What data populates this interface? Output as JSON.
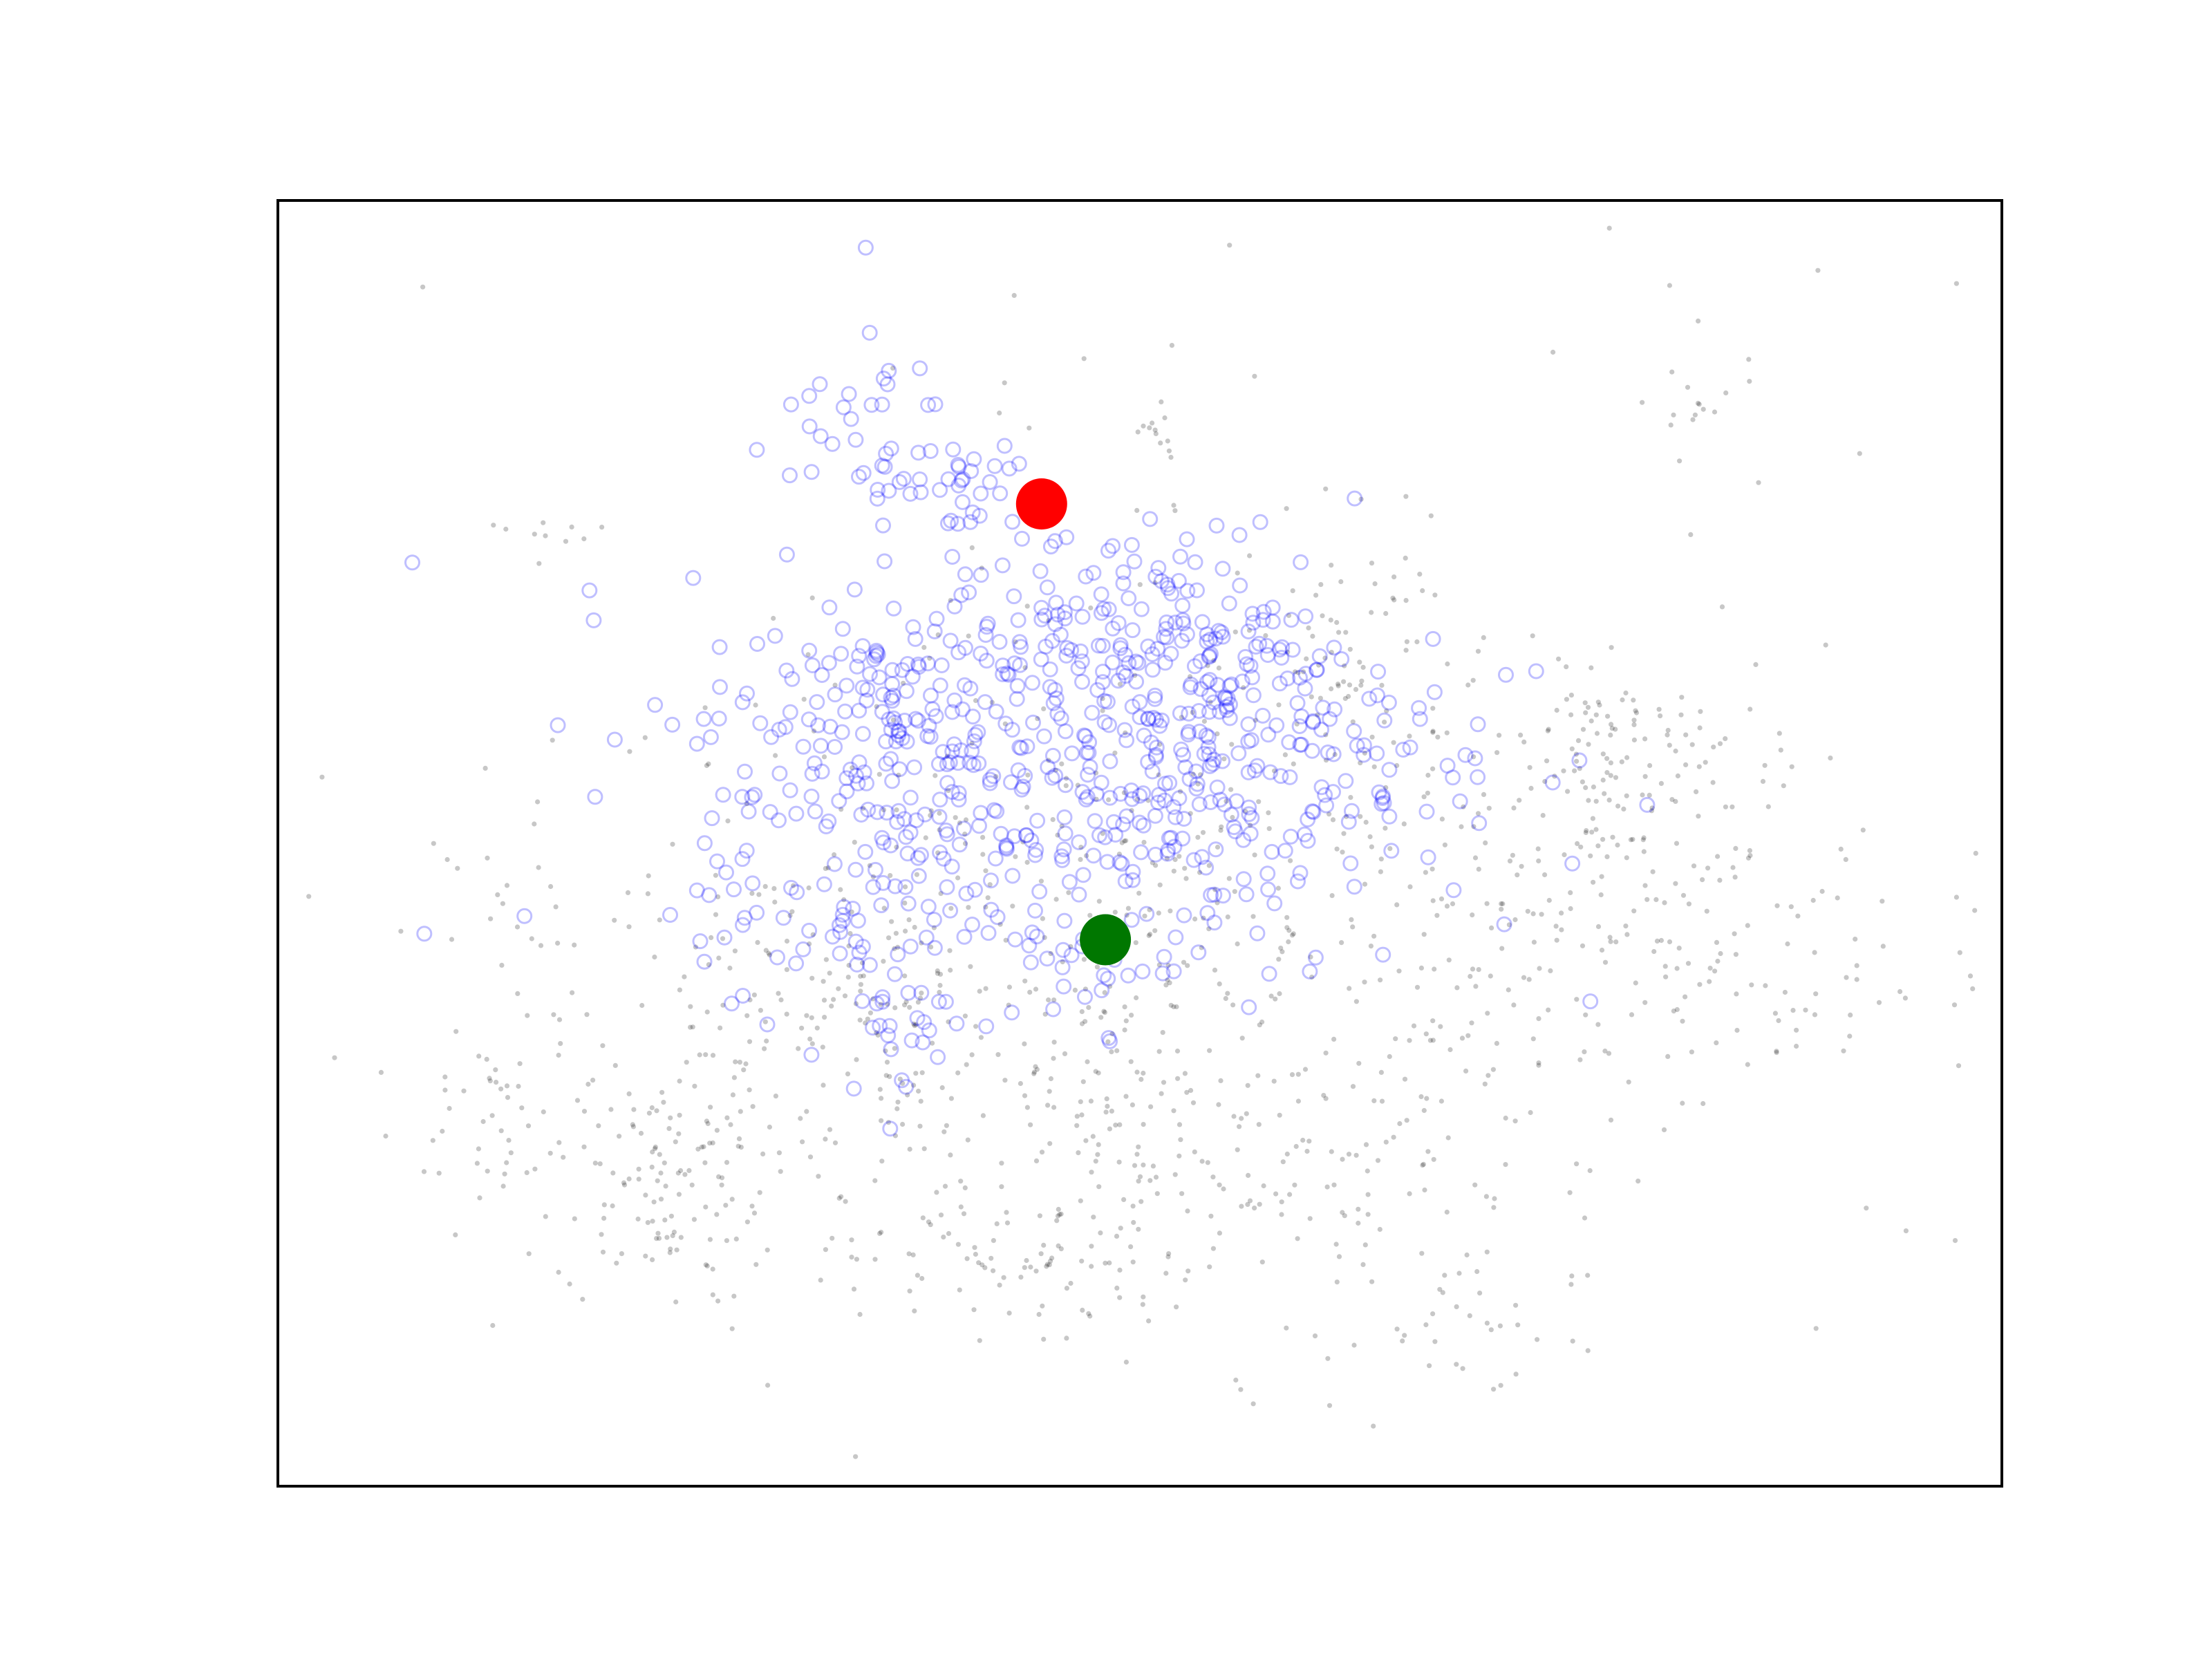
{
  "chart_data": {
    "type": "scatter",
    "title": "",
    "xlabel": "",
    "ylabel": "",
    "xlim": [
      0,
      100
    ],
    "ylim": [
      0,
      100
    ],
    "axes_ticks": false,
    "grid": false,
    "legend": "none",
    "series": [
      {
        "role": "background",
        "color": "#000000",
        "opacity": 0.22,
        "marker": "filled-dot",
        "clusters": [
          {
            "cx": 51,
            "cy": 43,
            "sx": 17,
            "sy": 12,
            "n": 520
          },
          {
            "cx": 33,
            "cy": 36,
            "sx": 8,
            "sy": 7,
            "n": 160
          },
          {
            "cx": 22,
            "cy": 24,
            "sx": 3,
            "sy": 5,
            "n": 110
          },
          {
            "cx": 43,
            "cy": 18,
            "sx": 5,
            "sy": 3,
            "n": 90
          },
          {
            "cx": 60,
            "cy": 23,
            "sx": 7,
            "sy": 7,
            "n": 110
          },
          {
            "cx": 79,
            "cy": 46,
            "sx": 7,
            "sy": 8,
            "n": 170
          },
          {
            "cx": 78,
            "cy": 57,
            "sx": 3,
            "sy": 3,
            "n": 60
          },
          {
            "cx": 62,
            "cy": 64,
            "sx": 3,
            "sy": 5,
            "n": 70
          },
          {
            "cx": 51,
            "cy": 80,
            "sx": 1,
            "sy": 3,
            "n": 15
          },
          {
            "cx": 82,
            "cy": 84,
            "sx": 2,
            "sy": 2,
            "n": 15
          },
          {
            "cx": 13,
            "cy": 28,
            "sx": 3,
            "sy": 4,
            "n": 40
          },
          {
            "cx": 12,
            "cy": 45,
            "sx": 2,
            "sy": 2,
            "n": 14
          },
          {
            "cx": 15,
            "cy": 74,
            "sx": 2,
            "sy": 1,
            "n": 10
          },
          {
            "cx": 48,
            "cy": 34,
            "sx": 3,
            "sy": 6,
            "n": 40
          },
          {
            "cx": 90,
            "cy": 40,
            "sx": 4,
            "sy": 4,
            "n": 25
          },
          {
            "cx": 70,
            "cy": 12,
            "sx": 4,
            "sy": 3,
            "n": 20
          },
          {
            "cx": 50,
            "cy": 50,
            "sx": 35,
            "sy": 34,
            "n": 130
          }
        ]
      },
      {
        "role": "reachable",
        "color": "#0000ff",
        "opacity": 0.25,
        "marker": "hollow-circle",
        "clusters": [
          {
            "cx": 45,
            "cy": 55,
            "sx": 11,
            "sy": 8,
            "n": 430
          },
          {
            "cx": 48,
            "cy": 67,
            "sx": 5,
            "sy": 4,
            "n": 70
          },
          {
            "cx": 53,
            "cy": 59,
            "sx": 8,
            "sy": 6,
            "n": 110
          },
          {
            "cx": 34,
            "cy": 62,
            "sx": 3,
            "sy": 3,
            "n": 50
          },
          {
            "cx": 33,
            "cy": 82,
            "sx": 3,
            "sy": 4,
            "n": 35
          },
          {
            "cx": 40,
            "cy": 77,
            "sx": 2,
            "sy": 2,
            "n": 30
          },
          {
            "cx": 33,
            "cy": 47,
            "sx": 4,
            "sy": 6,
            "n": 50
          },
          {
            "cx": 55,
            "cy": 66,
            "sx": 3,
            "sy": 4,
            "n": 50
          },
          {
            "cx": 36,
            "cy": 36,
            "sx": 1.5,
            "sy": 4,
            "n": 20
          },
          {
            "cx": 48,
            "cy": 41,
            "sx": 2,
            "sy": 2,
            "n": 15
          }
        ]
      },
      {
        "role": "origin",
        "color": "#ff0000",
        "marker": "large-dot",
        "x": 44.3,
        "y": 76.4
      },
      {
        "role": "destination",
        "color": "#007700",
        "marker": "large-dot",
        "x": 48.0,
        "y": 42.5
      }
    ]
  }
}
